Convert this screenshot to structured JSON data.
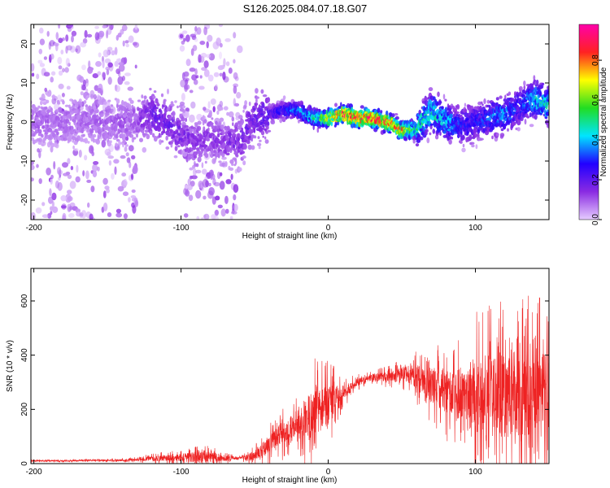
{
  "title": "S126.2025.084.07.18.G07",
  "chart_data": [
    {
      "type": "heatmap",
      "xlabel": "Height of straight line (km)",
      "ylabel": "Frequency (Hz)",
      "xlim": [
        -202,
        150
      ],
      "ylim": [
        -25,
        25
      ],
      "xticks": [
        -200,
        -100,
        0,
        100
      ],
      "yticks": [
        -20,
        -10,
        0,
        10,
        20
      ],
      "grid": false,
      "colorbar": {
        "label": "Normalized spectral amplitude",
        "range": [
          0,
          0.98
        ],
        "ticks": [
          0.0,
          0.2,
          0.4,
          0.6,
          0.8
        ],
        "colors": [
          "#e6ccff",
          "#8a2be2",
          "#2200ff",
          "#00e5ff",
          "#22dd22",
          "#ffff00",
          "#ff2222",
          "#ff00aa"
        ]
      },
      "ridge": {
        "x": [
          -202,
          -160,
          -130,
          -120,
          -110,
          -100,
          -90,
          -80,
          -70,
          -60,
          -50,
          -40,
          -30,
          -20,
          -10,
          0,
          10,
          20,
          30,
          40,
          50,
          60,
          70,
          80,
          90,
          100,
          110,
          120,
          130,
          140,
          150
        ],
        "frequency": [
          0,
          0,
          0,
          2,
          0,
          -3,
          -6,
          -4,
          -5,
          -5,
          1,
          2,
          3,
          3,
          1,
          1,
          2,
          1,
          1,
          0,
          -2,
          -2,
          3,
          0,
          -1,
          0,
          1,
          2,
          4,
          6,
          4
        ],
        "peak_amplitude": [
          0.1,
          0.1,
          0.12,
          0.2,
          0.2,
          0.18,
          0.15,
          0.15,
          0.15,
          0.18,
          0.2,
          0.25,
          0.3,
          0.4,
          0.5,
          0.7,
          0.9,
          0.95,
          0.9,
          0.85,
          0.8,
          0.5,
          0.5,
          0.45,
          0.3,
          0.3,
          0.35,
          0.4,
          0.3,
          0.45,
          0.5
        ]
      },
      "noise_regions": [
        {
          "x": [
            -202,
            -130
          ],
          "y": [
            -25,
            25
          ],
          "level": "low"
        },
        {
          "x": [
            -100,
            -60
          ],
          "y": [
            -25,
            25
          ],
          "level": "low"
        }
      ]
    },
    {
      "type": "line",
      "xlabel": "Height of straight line (km)",
      "ylabel": "SNR (10 * v/v)",
      "xlim": [
        -202,
        150
      ],
      "ylim": [
        0,
        720
      ],
      "xticks": [
        -200,
        -100,
        0,
        100
      ],
      "yticks": [
        0,
        200,
        400,
        600
      ],
      "grid": false,
      "series": [
        {
          "color": "#ee2222",
          "x": [
            -202,
            -180,
            -160,
            -140,
            -130,
            -120,
            -110,
            -100,
            -90,
            -80,
            -70,
            -60,
            -50,
            -40,
            -30,
            -20,
            -10,
            0,
            10,
            20,
            30,
            40,
            50,
            60,
            70,
            80,
            90,
            100,
            110,
            120,
            130,
            140,
            150
          ],
          "baseline": [
            10,
            10,
            12,
            12,
            15,
            18,
            20,
            22,
            25,
            25,
            20,
            20,
            30,
            70,
            110,
            150,
            170,
            210,
            260,
            300,
            320,
            320,
            330,
            320,
            290,
            260,
            260,
            260,
            250,
            260,
            240,
            250,
            240
          ],
          "spread": [
            6,
            6,
            6,
            8,
            10,
            20,
            25,
            30,
            50,
            45,
            25,
            10,
            40,
            80,
            100,
            130,
            230,
            180,
            60,
            30,
            25,
            40,
            60,
            100,
            150,
            180,
            220,
            320,
            340,
            360,
            380,
            400,
            350
          ]
        }
      ]
    }
  ]
}
